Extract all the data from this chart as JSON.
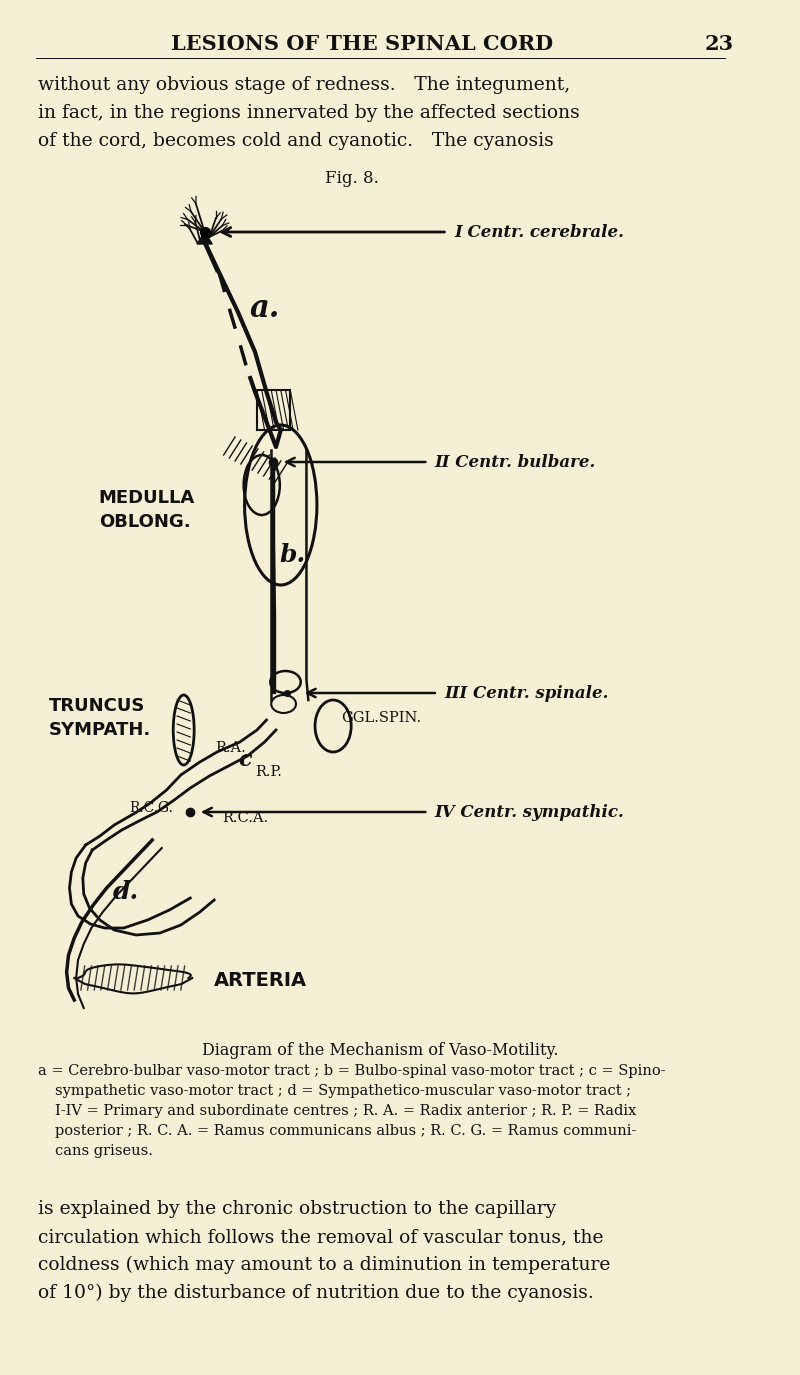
{
  "bg_color": "#f5f0d5",
  "text_color": "#111111",
  "page_header": "LESIONS OF THE SPINAL CORD",
  "page_number": "23",
  "fig_label": "Fig. 8.",
  "label_I": "I Centr. cerebrale.",
  "label_II": "II Centr. bulbare.",
  "label_III": "III Centr. spinale.",
  "label_IV": "IV Centr. sympathic.",
  "label_a": "a.",
  "label_b": "b.",
  "label_c": "c",
  "label_d": "d.",
  "label_medulla": "MEDULLA\nOBLONG.",
  "label_truncus": "TRUNCUS\nSYMPATH.",
  "label_ra": "R.A.",
  "label_rp": "R.P.",
  "label_rca": "R.C.A.",
  "label_rcg": "R.C.G.",
  "label_ggl": "GGL.SPIN.",
  "label_arteria": "ARTERIA",
  "caption_title": "Diagram of the Mechanism of Vaso-Motility.",
  "top_text": [
    "without any obvious stage of redness. The integument,",
    "in fact, in the regions innervated by the affected sections",
    "of the cord, becomes cold and cyanotic. The cyanosis"
  ],
  "caption_lines": [
    "a = Cerebro-bulbar vaso-motor tract ; b = Bulbo-spinal vaso-motor tract ; c = Spino-",
    "sympathetic vaso-motor tract ; d = Sympathetico-muscular vaso-motor tract ;",
    "I-IV = Primary and subordinate centres ; R. A. = Radix anterior ; R. P. = Radix",
    "posterior ; R. C. A. = Ramus communicans albus ; R. C. G. = Ramus communi-",
    "cans griseus."
  ],
  "bottom_text": [
    "is explained by the chronic obstruction to the capillary",
    "circulation which follows the removal of vascular tonus, the",
    "coldness (which may amount to a diminution in temperature",
    "of 10°) by the disturbance of nutrition due to the cyanosis."
  ]
}
